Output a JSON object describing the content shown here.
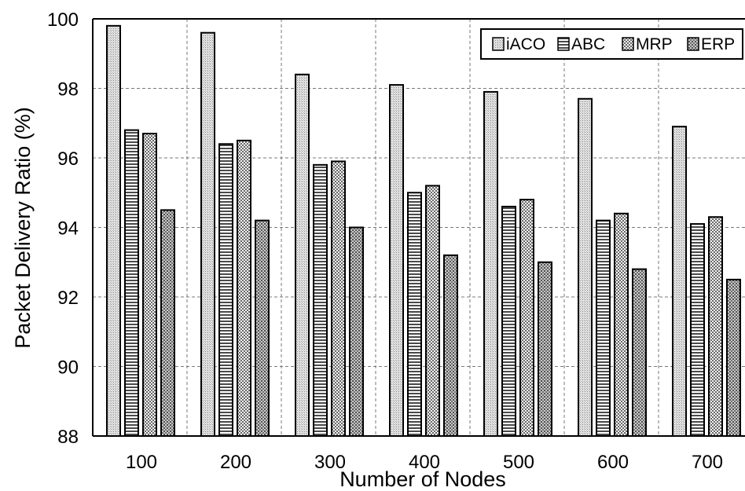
{
  "chart_data": {
    "type": "bar",
    "title": "",
    "xlabel": "Number of Nodes",
    "ylabel": "Packet Delivery Ratio (%)",
    "categories": [
      "100",
      "200",
      "300",
      "400",
      "500",
      "600",
      "700"
    ],
    "ylim": [
      88,
      100
    ],
    "yticks": [
      88,
      90,
      92,
      94,
      96,
      98,
      100
    ],
    "grid": true,
    "legend_position": "top-right",
    "series": [
      {
        "name": "iACO",
        "values": [
          99.8,
          99.6,
          98.4,
          98.1,
          97.9,
          97.7,
          96.9
        ]
      },
      {
        "name": "ABC",
        "values": [
          96.8,
          96.4,
          95.8,
          95.0,
          94.6,
          94.2,
          94.1
        ]
      },
      {
        "name": "MRP",
        "values": [
          96.7,
          96.5,
          95.9,
          95.2,
          94.8,
          94.4,
          94.3
        ]
      },
      {
        "name": "ERP",
        "values": [
          94.5,
          94.2,
          94.0,
          93.2,
          93.0,
          92.8,
          92.5
        ]
      }
    ]
  }
}
